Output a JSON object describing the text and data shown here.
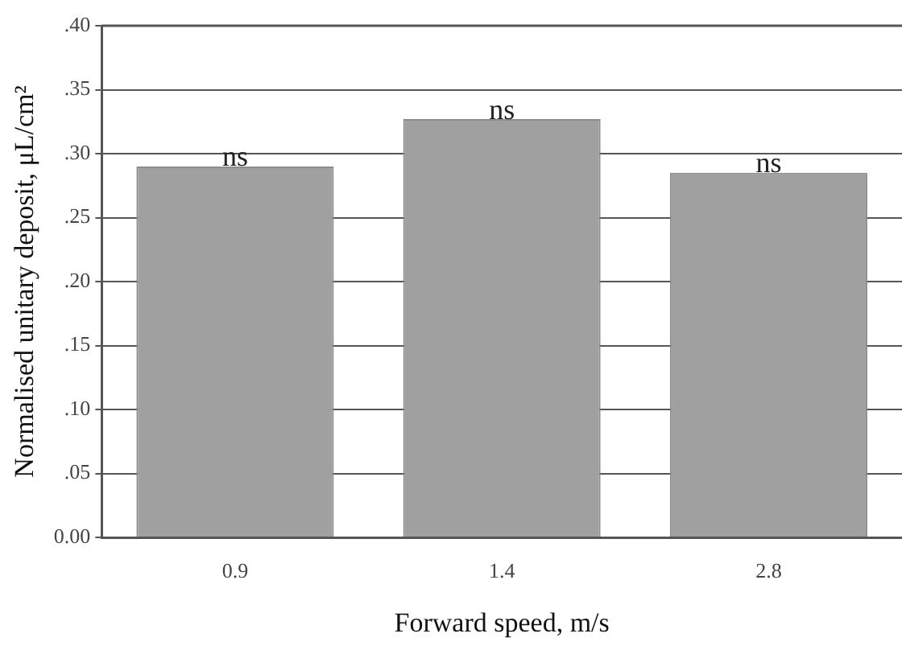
{
  "chart_data": {
    "type": "bar",
    "xlabel": "Forward speed, m/s",
    "ylabel": "Normalised unitary deposit, μL/cm²",
    "categories": [
      "0.9",
      "1.4",
      "2.8"
    ],
    "values": [
      0.29,
      0.327,
      0.285
    ],
    "color": "#a0a0a0",
    "ylim": [
      0,
      0.4
    ],
    "yticks": [
      {
        "value": 0,
        "label": "0.00"
      },
      {
        "value": 0.05,
        "label": ".05"
      },
      {
        "value": 0.1,
        "label": ".10"
      },
      {
        "value": 0.15,
        "label": ".15"
      },
      {
        "value": 0.2,
        "label": ".20"
      },
      {
        "value": 0.25,
        "label": ".25"
      },
      {
        "value": 0.3,
        "label": ".30"
      },
      {
        "value": 0.35,
        "label": ".35"
      },
      {
        "value": 0.4,
        "label": ".40"
      }
    ],
    "grid": "y",
    "legend": false,
    "annotations": [
      {
        "text": "ns",
        "x": "0.9",
        "y": 0.29
      },
      {
        "text": "ns",
        "x": "1.4",
        "y": 0.327
      },
      {
        "text": "ns",
        "x": "2.8",
        "y": 0.285
      }
    ]
  }
}
